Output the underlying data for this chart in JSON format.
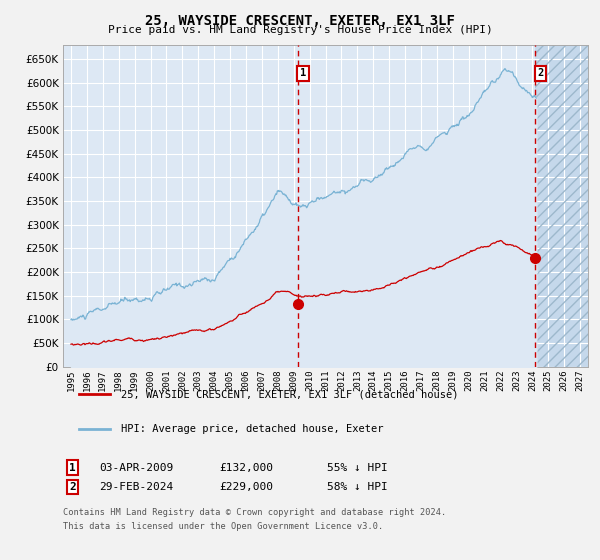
{
  "title": "25, WAYSIDE CRESCENT, EXETER, EX1 3LF",
  "subtitle": "Price paid vs. HM Land Registry's House Price Index (HPI)",
  "legend_line1": "25, WAYSIDE CRESCENT, EXETER, EX1 3LF (detached house)",
  "legend_line2": "HPI: Average price, detached house, Exeter",
  "annotation1_label": "1",
  "annotation1_date": "03-APR-2009",
  "annotation1_price": "£132,000",
  "annotation1_pct": "55% ↓ HPI",
  "annotation2_label": "2",
  "annotation2_date": "29-FEB-2024",
  "annotation2_price": "£229,000",
  "annotation2_pct": "58% ↓ HPI",
  "footer1": "Contains HM Land Registry data © Crown copyright and database right 2024.",
  "footer2": "This data is licensed under the Open Government Licence v3.0.",
  "hpi_color": "#7ab3d4",
  "price_color": "#cc0000",
  "background_color": "#dde8f4",
  "grid_color": "#ffffff",
  "vline_color": "#cc0000",
  "fig_bg": "#f2f2f2",
  "ylim": [
    0,
    680000
  ],
  "yticks": [
    0,
    50000,
    100000,
    150000,
    200000,
    250000,
    300000,
    350000,
    400000,
    450000,
    500000,
    550000,
    600000,
    650000
  ],
  "xstart": 1994.5,
  "xend": 2027.5,
  "sale1_x": 2009.25,
  "sale1_y": 132000,
  "sale2_x": 2024.17,
  "sale2_y": 229000,
  "future_start": 2024.17,
  "xtick_years": [
    1995,
    1996,
    1997,
    1998,
    1999,
    2000,
    2001,
    2002,
    2003,
    2004,
    2005,
    2006,
    2007,
    2008,
    2009,
    2010,
    2011,
    2012,
    2013,
    2014,
    2015,
    2016,
    2017,
    2018,
    2019,
    2020,
    2021,
    2022,
    2023,
    2024,
    2025,
    2026,
    2027
  ]
}
